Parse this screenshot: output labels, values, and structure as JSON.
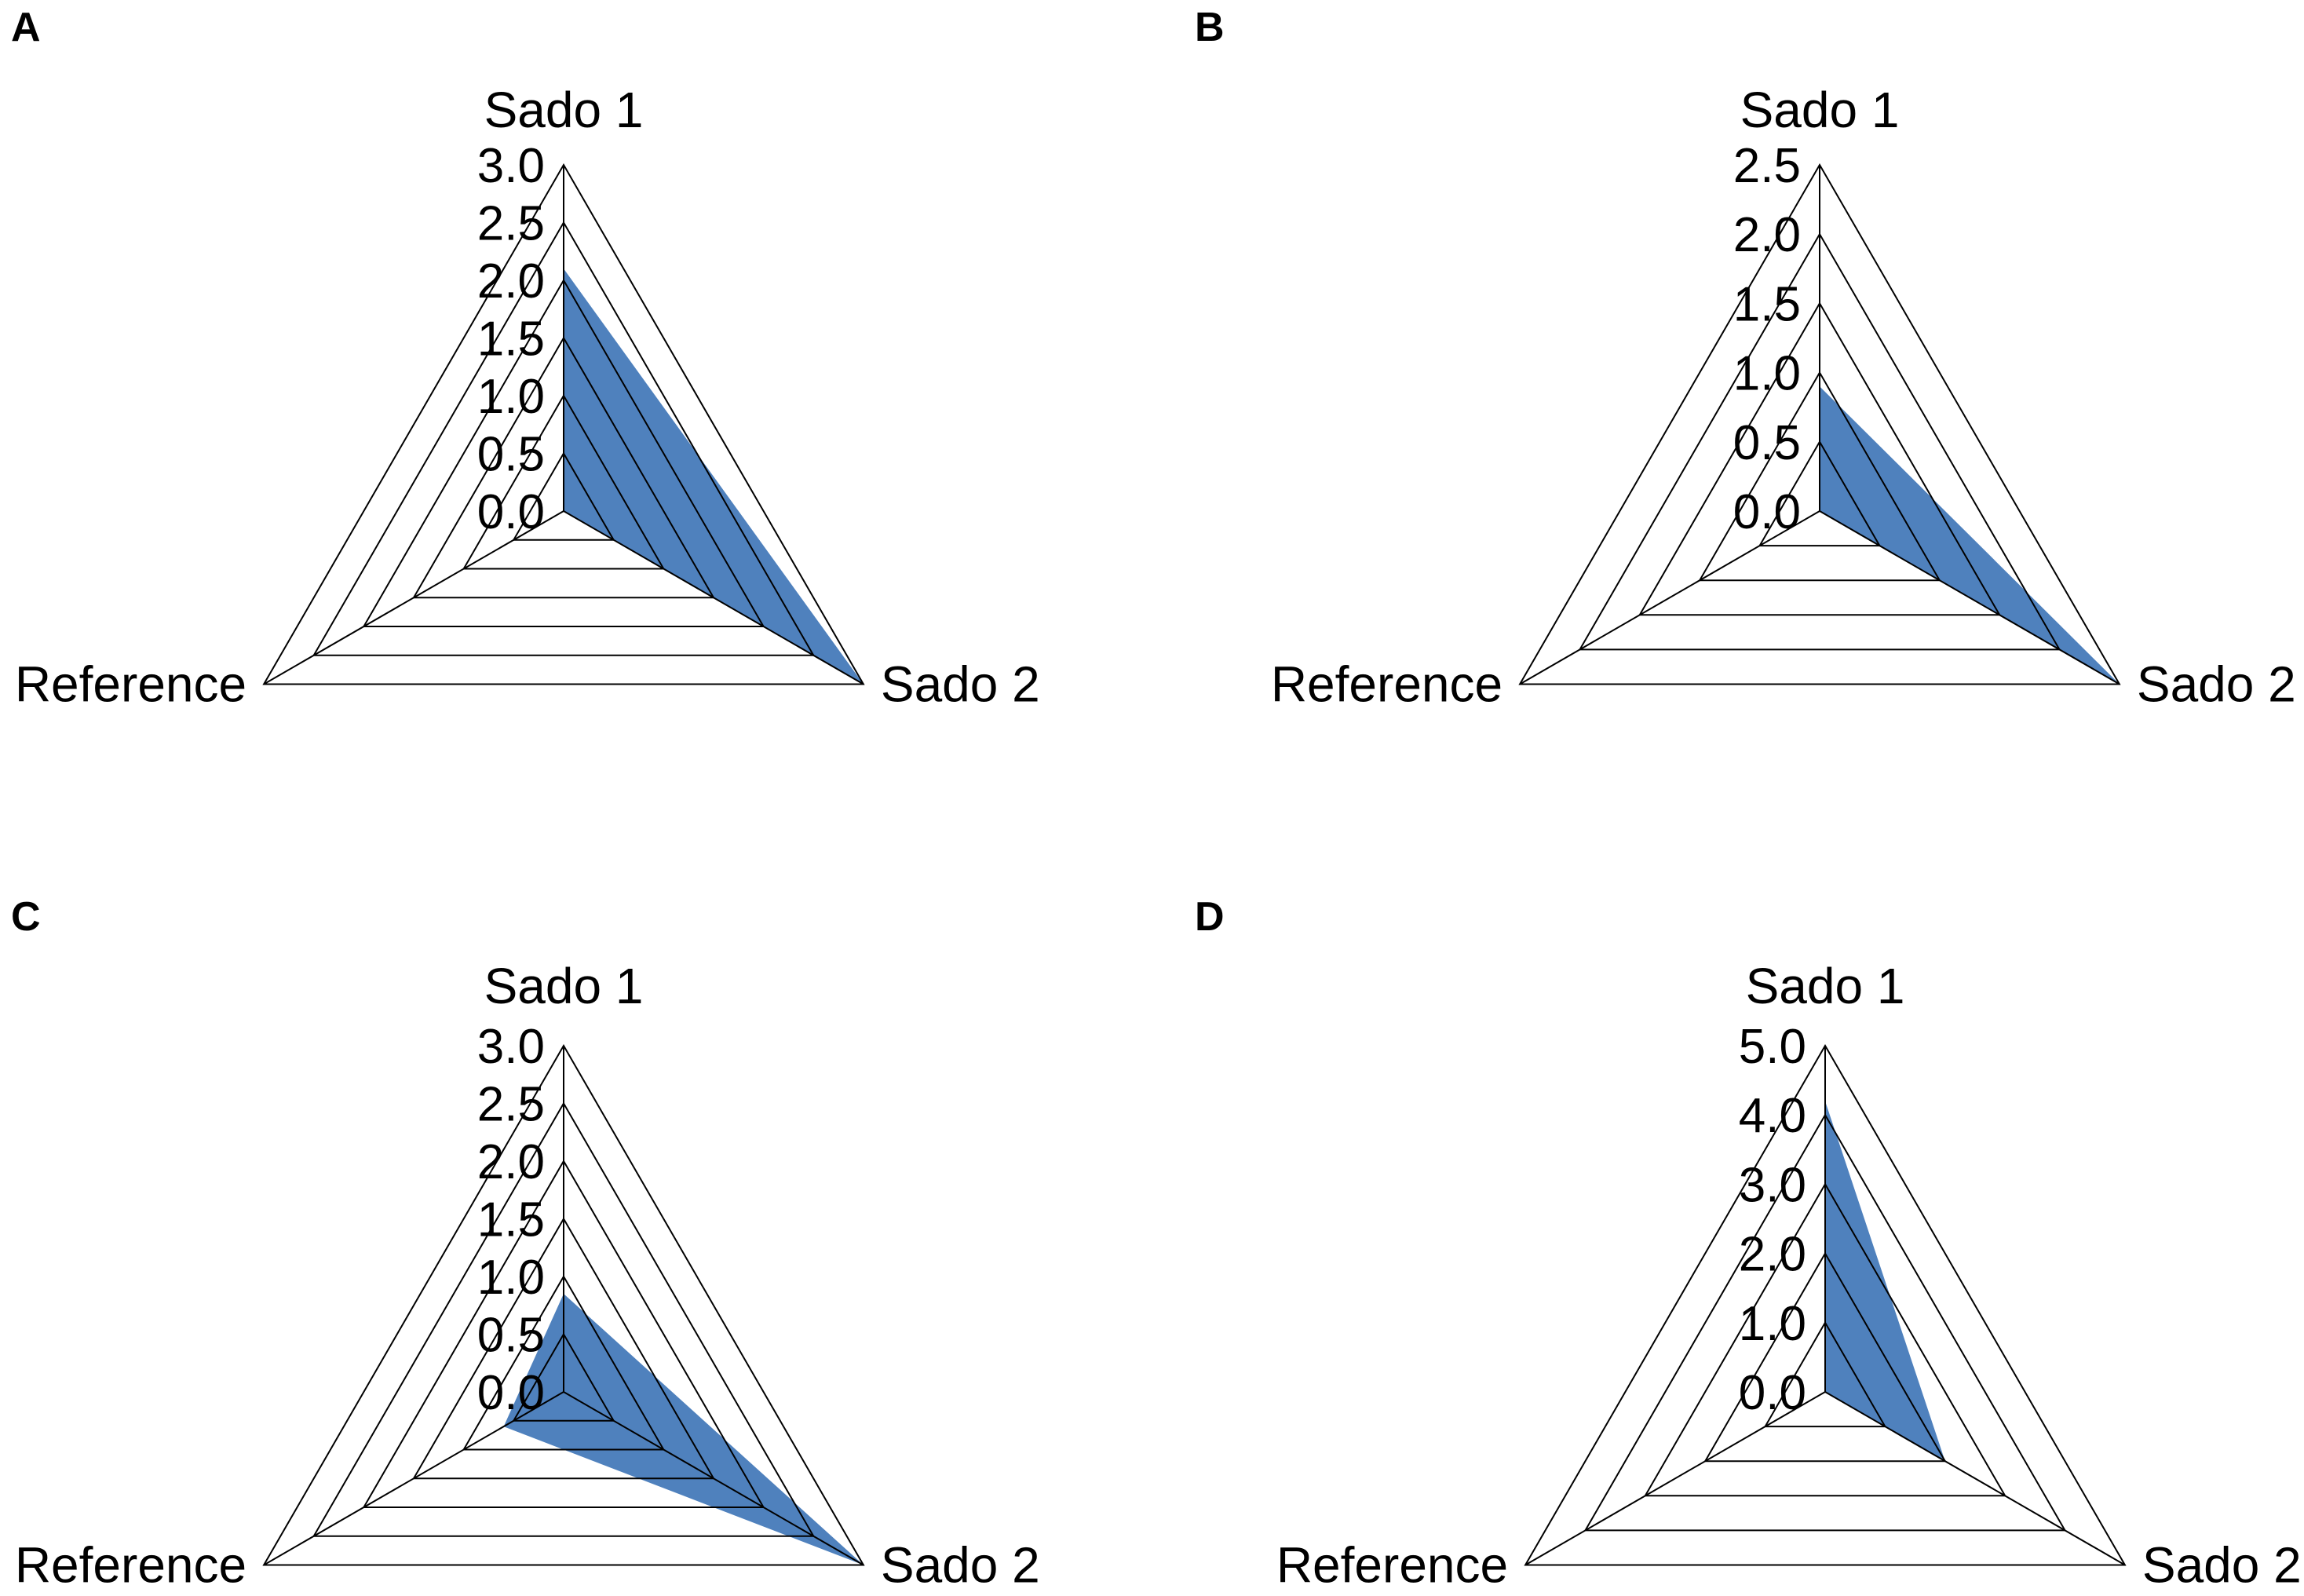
{
  "chart_data": [
    {
      "panel": "A",
      "type": "radar",
      "axes": [
        "Sado 1",
        "Sado 2",
        "Reference"
      ],
      "ticks": [
        "0.0",
        "0.5",
        "1.0",
        "1.5",
        "2.0",
        "2.5",
        "3.0"
      ],
      "rmax": 3.0,
      "series": [
        {
          "name": "",
          "values": [
            2.1,
            3.0,
            0.0
          ]
        }
      ]
    },
    {
      "panel": "B",
      "type": "radar",
      "axes": [
        "Sado 1",
        "Sado 2",
        "Reference"
      ],
      "ticks": [
        "0.0",
        "0.5",
        "1.0",
        "1.5",
        "2.0",
        "2.5"
      ],
      "rmax": 2.5,
      "series": [
        {
          "name": "",
          "values": [
            0.9,
            2.5,
            0.0
          ]
        }
      ]
    },
    {
      "panel": "C",
      "type": "radar",
      "axes": [
        "Sado 1",
        "Sado 2",
        "Reference"
      ],
      "ticks": [
        "0.0",
        "0.5",
        "1.0",
        "1.5",
        "2.0",
        "2.5",
        "3.0"
      ],
      "rmax": 3.0,
      "series": [
        {
          "name": "",
          "values": [
            0.85,
            3.0,
            0.6
          ]
        }
      ]
    },
    {
      "panel": "D",
      "type": "radar",
      "axes": [
        "Sado 1",
        "Sado 2",
        "Reference"
      ],
      "ticks": [
        "0.0",
        "1.0",
        "2.0",
        "3.0",
        "4.0",
        "5.0"
      ],
      "rmax": 5.0,
      "series": [
        {
          "name": "",
          "values": [
            4.2,
            2.0,
            0.0
          ]
        }
      ]
    }
  ],
  "colors": {
    "series_fill": "#4f81bd",
    "line": "#000000"
  }
}
